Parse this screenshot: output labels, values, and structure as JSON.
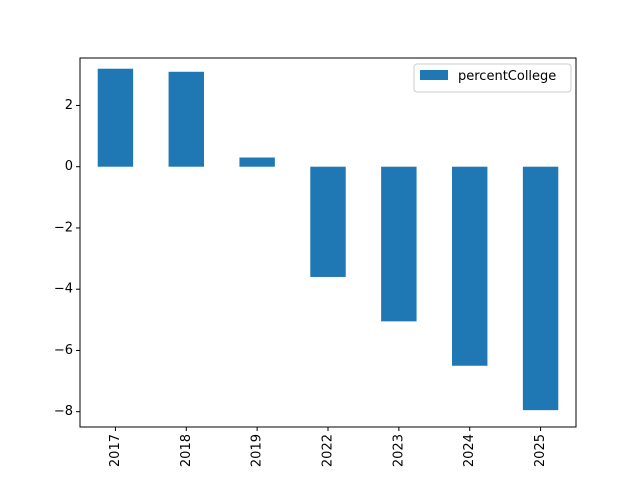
{
  "chart_data": {
    "type": "bar",
    "categories": [
      "2017",
      "2018",
      "2019",
      "2022",
      "2023",
      "2024",
      "2025"
    ],
    "series": [
      {
        "name": "percentCollege",
        "values": [
          3.2,
          3.1,
          0.3,
          -3.6,
          -5.05,
          -6.5,
          -7.95
        ],
        "color": "#1f77b4"
      }
    ],
    "xlabel": "",
    "ylabel": "",
    "ylim": [
      -8.5,
      3.55
    ],
    "yticks": [
      2,
      0,
      -2,
      -4,
      -6,
      -8
    ],
    "ytick_labels": [
      "2",
      "0",
      "−2",
      "−4",
      "−6",
      "−8"
    ],
    "legend_placement": "top-right",
    "grid": false
  }
}
